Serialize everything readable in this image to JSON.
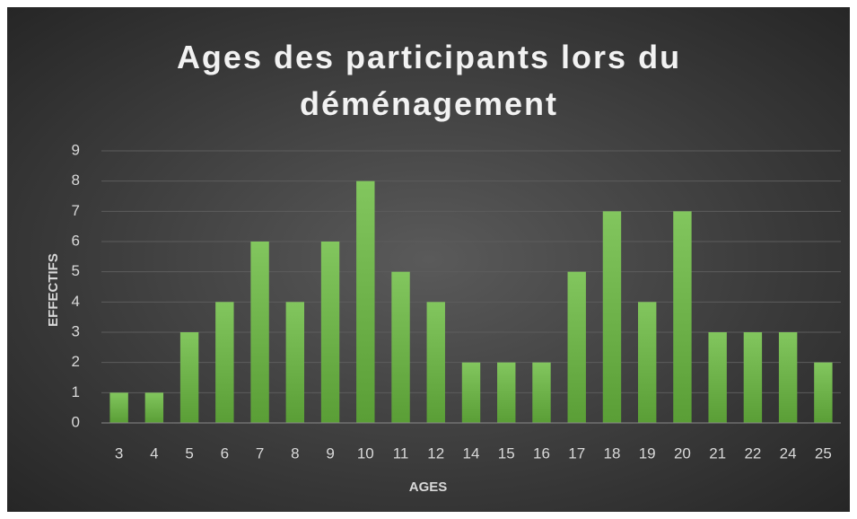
{
  "chart_data": {
    "type": "bar",
    "title": "Ages des participants lors du déménagement",
    "x_label": "AGES",
    "y_label": "EFFECTIFS",
    "categories": [
      "3",
      "4",
      "5",
      "6",
      "7",
      "8",
      "9",
      "10",
      "11",
      "12",
      "14",
      "15",
      "16",
      "17",
      "18",
      "19",
      "20",
      "21",
      "22",
      "24",
      "25"
    ],
    "values": [
      1,
      1,
      3,
      4,
      6,
      4,
      6,
      8,
      5,
      4,
      2,
      2,
      2,
      5,
      7,
      4,
      7,
      3,
      3,
      3,
      2
    ],
    "color": "#70b84a",
    "ylim": [
      0,
      9
    ],
    "yticks": [
      0,
      1,
      2,
      3,
      4,
      5,
      6,
      7,
      8,
      9
    ],
    "grid": true
  }
}
